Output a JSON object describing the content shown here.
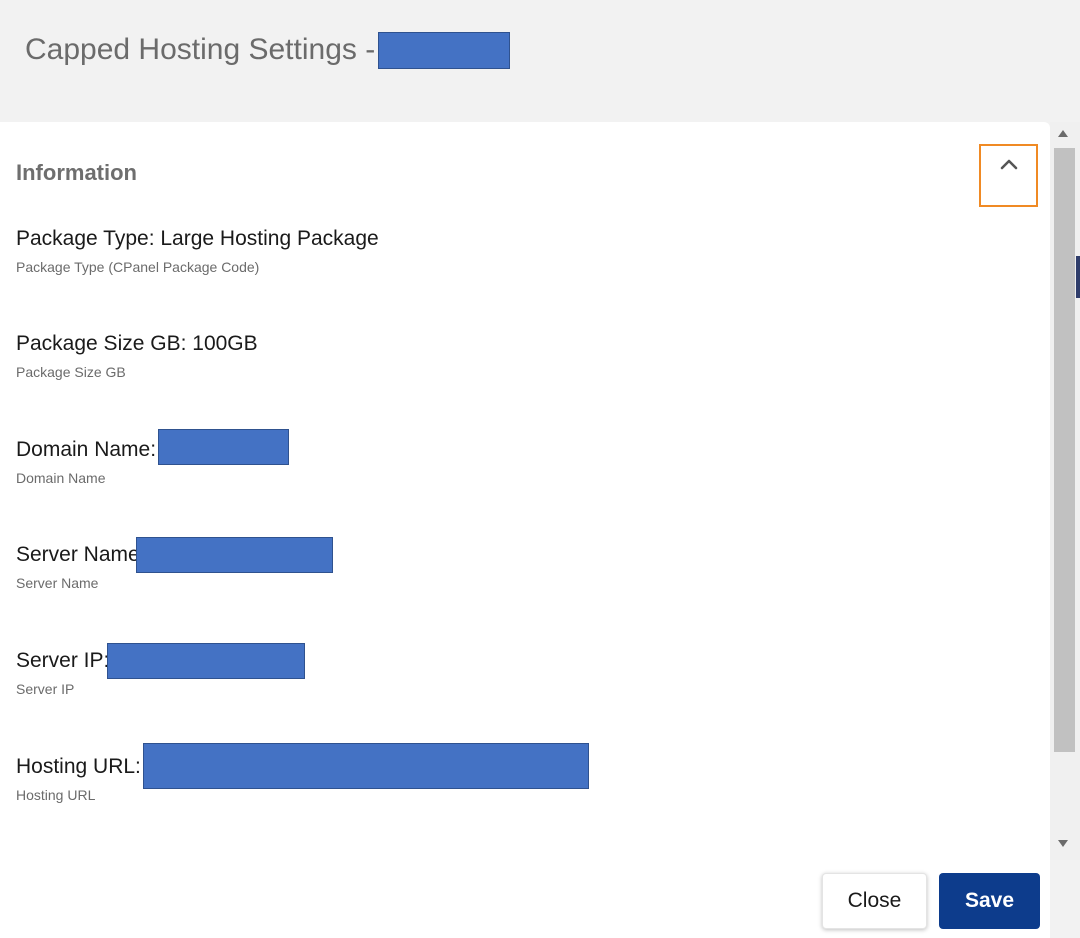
{
  "header": {
    "title": "Capped Hosting Settings - "
  },
  "section": {
    "title": "Information",
    "collapse_icon": "chevron-up-icon"
  },
  "fields": [
    {
      "label": "Package Type: ",
      "value": "Large Hosting Package",
      "help": "Package Type (CPanel Package Code)",
      "redacted": false
    },
    {
      "label": "Package Size GB: ",
      "value": "100GB",
      "help": "Package Size GB",
      "redacted": false
    },
    {
      "label": "Domain Name:",
      "value": "",
      "help": "Domain Name",
      "redacted": true
    },
    {
      "label": "Server Name:",
      "value": "",
      "help": "Server Name",
      "redacted": true
    },
    {
      "label": "Server IP:",
      "value": "",
      "help": "Server IP",
      "redacted": true
    },
    {
      "label": "Hosting URL:",
      "value": "",
      "help": "Hosting URL",
      "redacted": true
    }
  ],
  "footer": {
    "close_label": "Close",
    "save_label": "Save"
  },
  "colors": {
    "accent_focus": "#f08a24",
    "primary_button": "#0d3c8c",
    "redaction": "#4472c4"
  }
}
